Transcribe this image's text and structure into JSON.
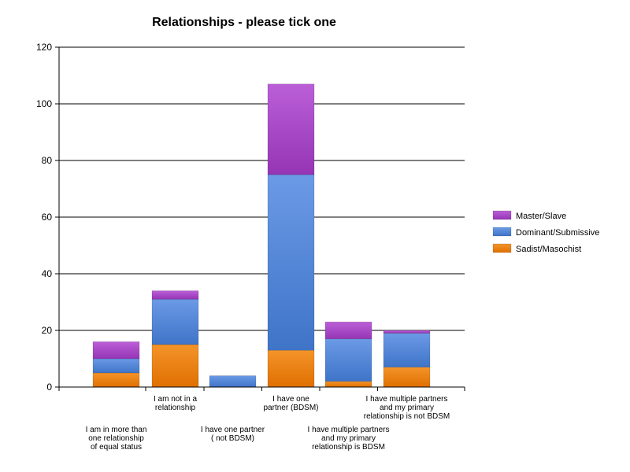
{
  "chart_data": {
    "type": "bar",
    "stacked": true,
    "title": "Relationships - please tick one",
    "xlabel": "",
    "ylabel": "",
    "ylim": [
      0,
      120
    ],
    "yticks": [
      "0",
      "20",
      "40",
      "60",
      "80",
      "100",
      "120"
    ],
    "grid": true,
    "legend_position": "right",
    "categories": [
      [
        "I am in more than",
        "one relationship",
        "of equal status"
      ],
      [
        "I am not in a",
        "relationship"
      ],
      [
        "I have one partner",
        "( not BDSM)"
      ],
      [
        "I have one",
        "partner (BDSM)"
      ],
      [
        "I have multiple partners",
        "and my primary",
        "relationship is BDSM"
      ],
      [
        "I have multiple partners",
        "and my primary",
        "relationship is not BDSM"
      ]
    ],
    "series": [
      {
        "name": "Sadist/Masochist",
        "color": "#f07d00",
        "values": [
          5,
          15,
          0,
          13,
          2,
          7
        ]
      },
      {
        "name": "Dominant/Submissive",
        "color": "#4f86d9",
        "values": [
          5,
          16,
          4,
          62,
          15,
          12
        ]
      },
      {
        "name": "Master/Slave",
        "color": "#a845c8",
        "values": [
          6,
          3,
          0,
          32,
          6,
          1
        ]
      }
    ]
  }
}
